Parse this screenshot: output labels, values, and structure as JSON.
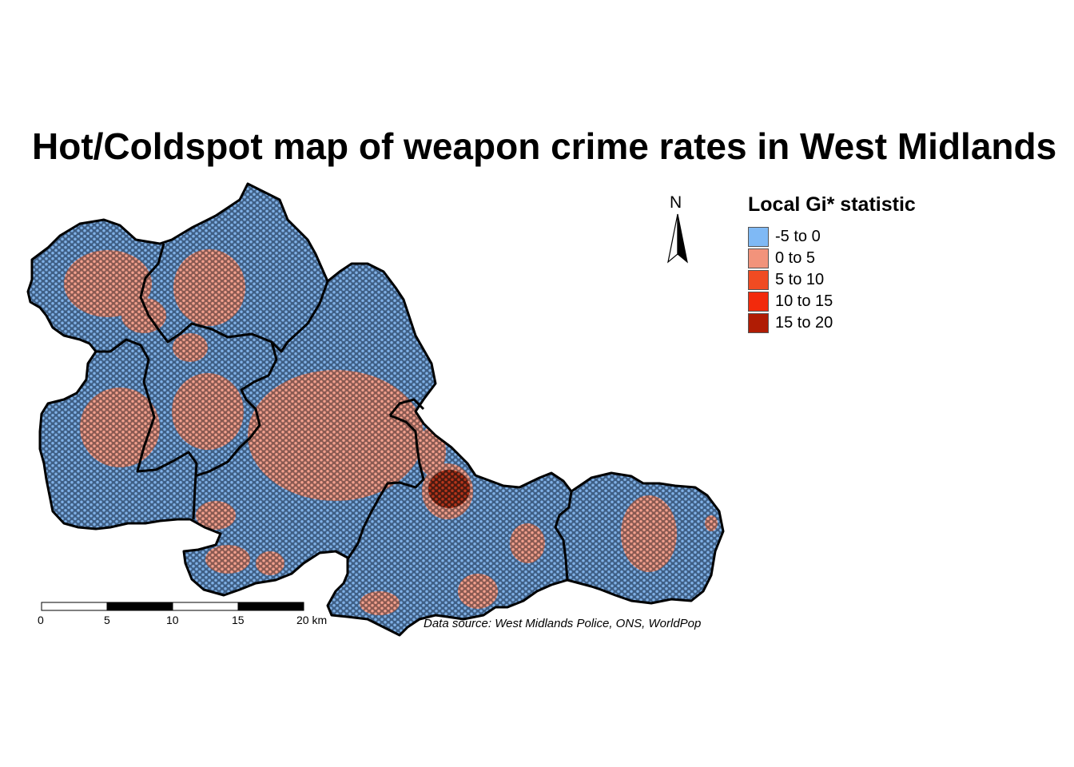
{
  "title": "Hot/Coldspot map of weapon crime rates in West Midlands",
  "legend": {
    "title": "Local Gi* statistic",
    "items": [
      {
        "label": "-5 to 0",
        "color": "#7fb9f5"
      },
      {
        "label": "0 to 5",
        "color": "#f2937b"
      },
      {
        "label": "5 to 10",
        "color": "#f04b22"
      },
      {
        "label": "10 to 15",
        "color": "#f22a0c"
      },
      {
        "label": "15 to 20",
        "color": "#b01c04"
      }
    ]
  },
  "north_arrow": {
    "label": "N",
    "icon": "north-arrow-icon"
  },
  "scale_bar": {
    "ticks": [
      "0",
      "5",
      "10",
      "15"
    ],
    "end_label": "20 km"
  },
  "credit": "Data source: West Midlands Police, ONS, WorldPop",
  "colors": {
    "cold": "#6f9fd6",
    "hot": "#ef9a86",
    "hottest": "#b33a1f",
    "boundary": "#000000"
  }
}
